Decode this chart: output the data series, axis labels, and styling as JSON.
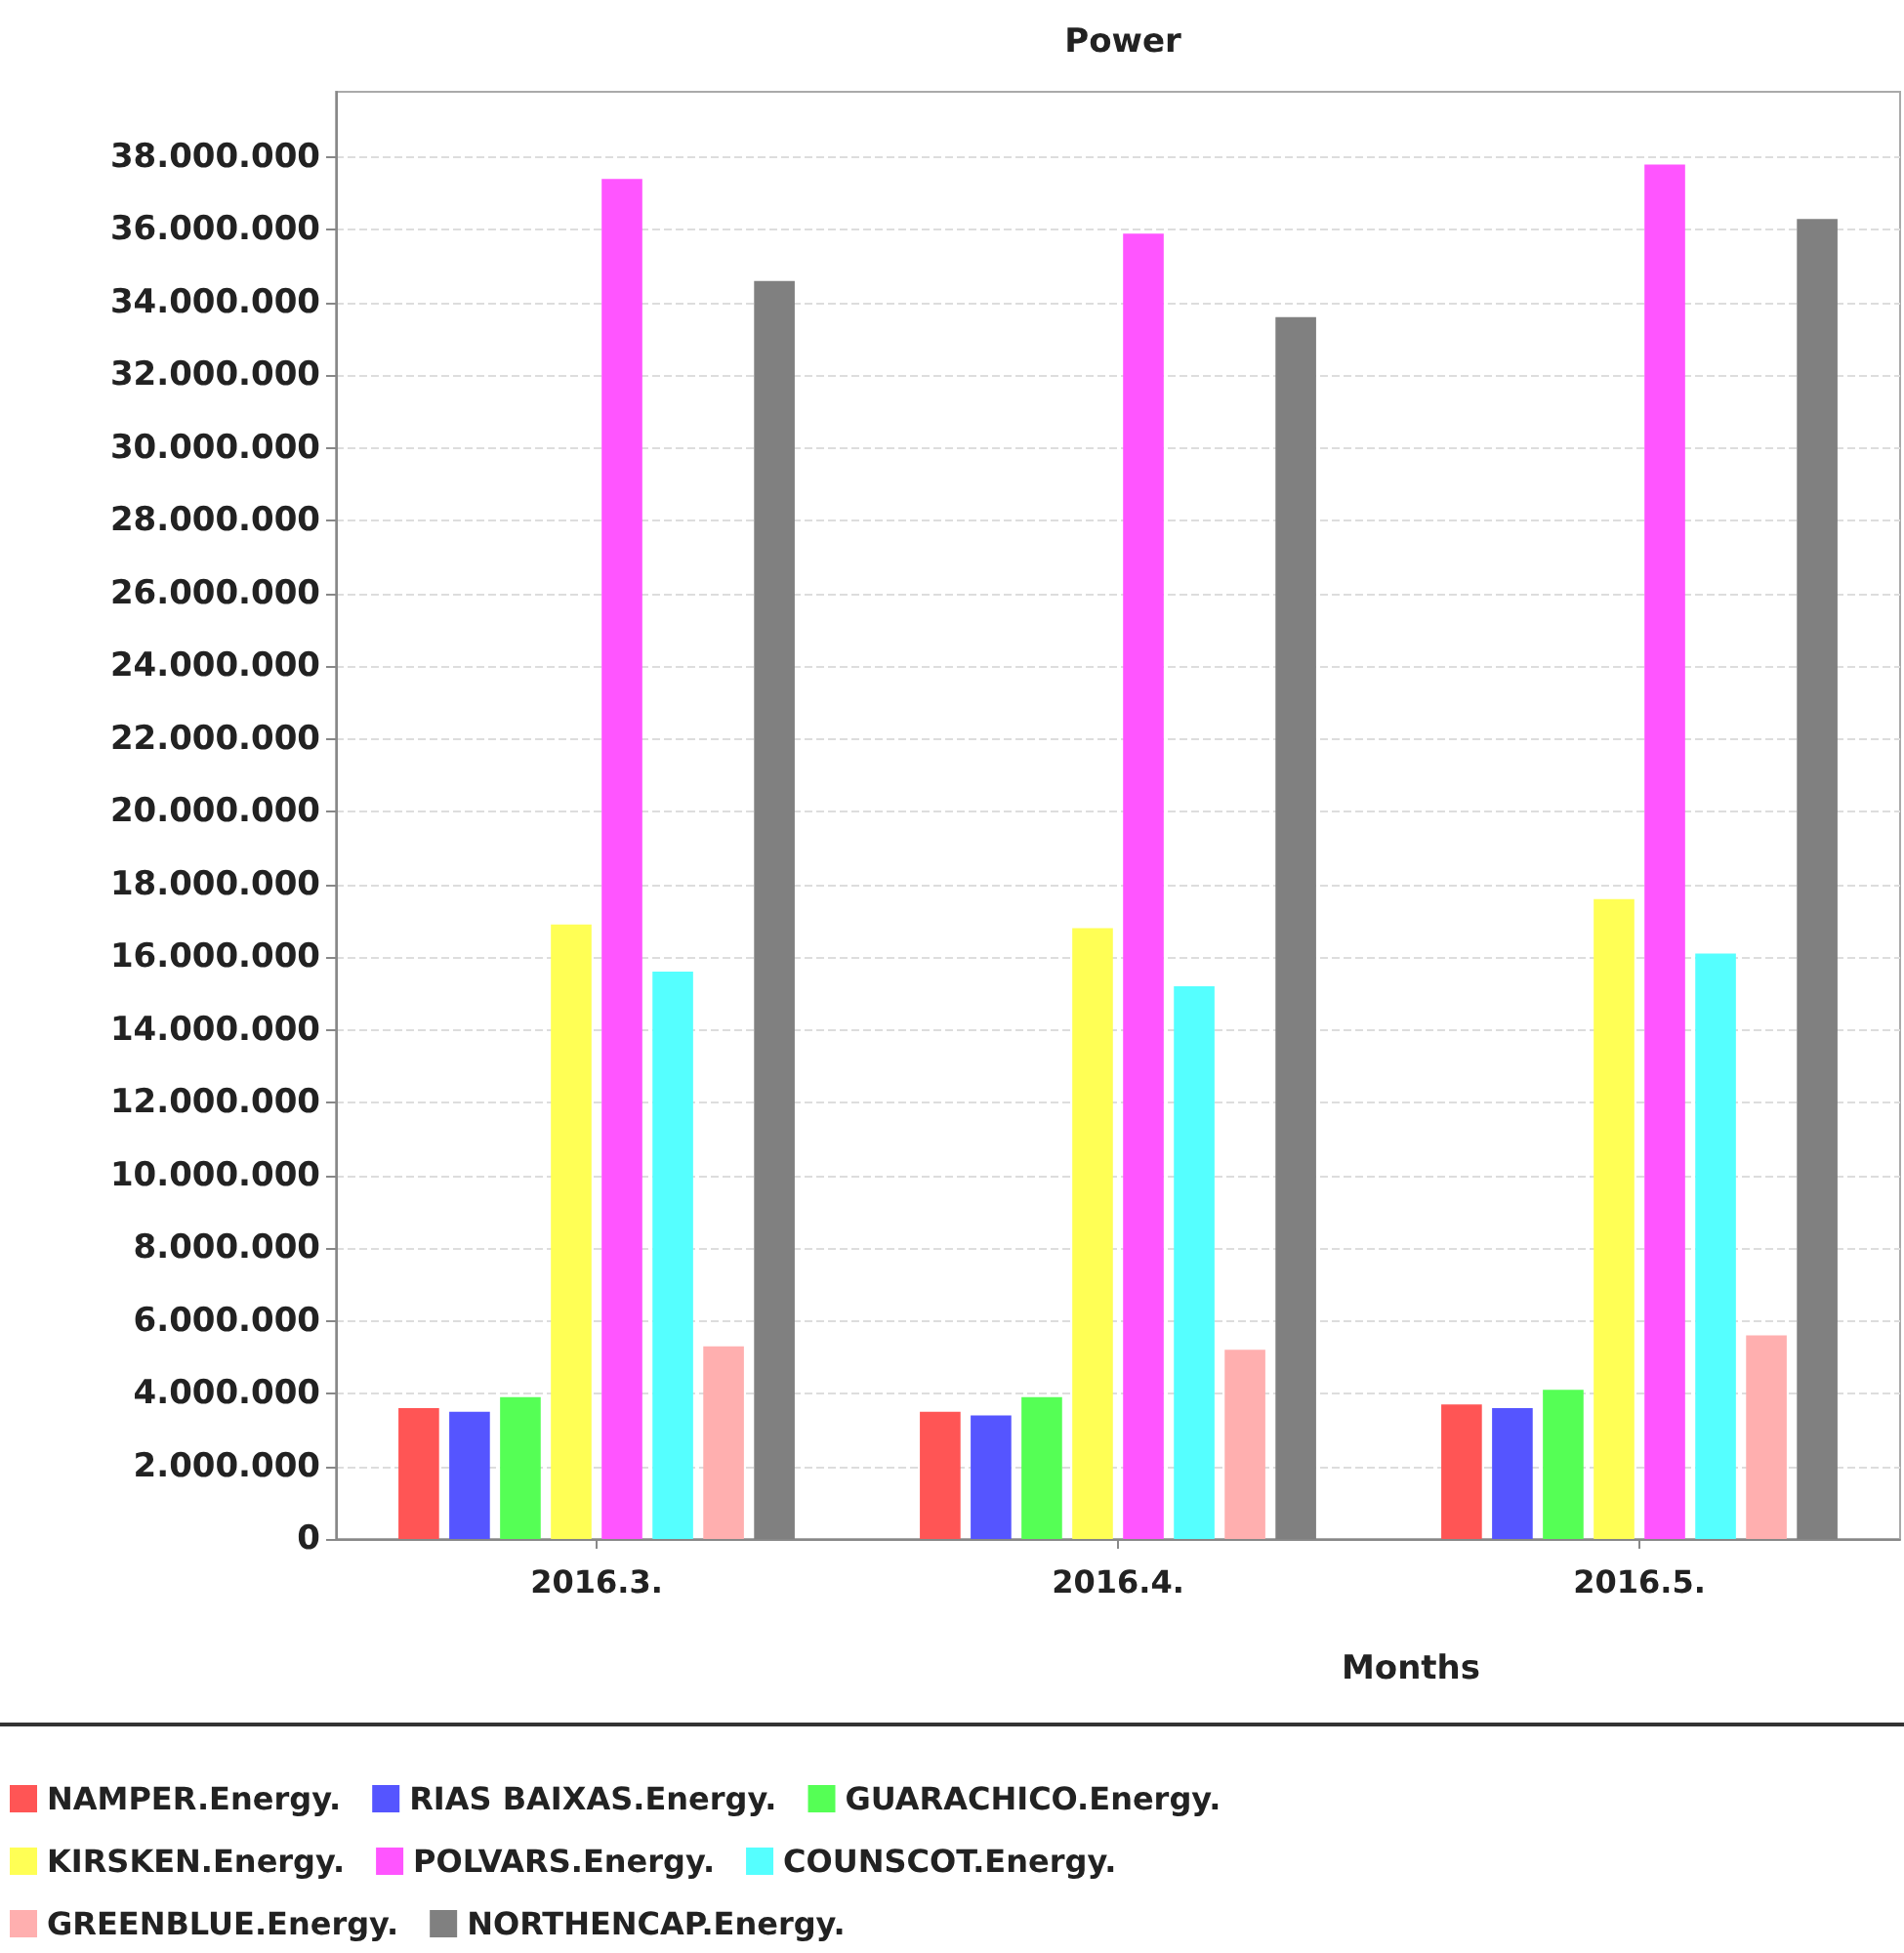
{
  "chart_data": {
    "type": "bar",
    "title": "Power",
    "xlabel": "Months",
    "categories": [
      "2016.3.",
      "2016.4.",
      "2016.5."
    ],
    "series": [
      {
        "name": "NAMPER.Energy.",
        "color": "#ff5555",
        "values": [
          3600000,
          3500000,
          3700000
        ]
      },
      {
        "name": "RIAS BAIXAS.Energy.",
        "color": "#5555ff",
        "values": [
          3500000,
          3400000,
          3600000
        ]
      },
      {
        "name": "GUARACHICO.Energy.",
        "color": "#55ff55",
        "values": [
          3900000,
          3900000,
          4100000
        ]
      },
      {
        "name": "KIRSKEN.Energy.",
        "color": "#ffff55",
        "values": [
          16900000,
          16800000,
          17600000
        ]
      },
      {
        "name": "POLVARS.Energy.",
        "color": "#ff55ff",
        "values": [
          37400000,
          35900000,
          37800000
        ]
      },
      {
        "name": "COUNSCOT.Energy.",
        "color": "#55ffff",
        "values": [
          15600000,
          15200000,
          16100000
        ]
      },
      {
        "name": "GREENBLUE.Energy.",
        "color": "#ffafaf",
        "values": [
          5300000,
          5200000,
          5600000
        ]
      },
      {
        "name": "NORTHENCAP.Energy.",
        "color": "#808080",
        "values": [
          34600000,
          33600000,
          36300000
        ]
      }
    ],
    "ylim": [
      0,
      39800000
    ],
    "yticks": [
      0,
      {
        "value": 2000000,
        "label": "2.000.000"
      },
      {
        "value": 4000000,
        "label": "4.000.000"
      },
      {
        "value": 6000000,
        "label": "6.000.000"
      },
      {
        "value": 8000000,
        "label": "8.000.000"
      },
      {
        "value": 10000000,
        "label": "10.000.000"
      },
      {
        "value": 12000000,
        "label": "12.000.000"
      },
      {
        "value": 14000000,
        "label": "14.000.000"
      },
      {
        "value": 16000000,
        "label": "16.000.000"
      },
      {
        "value": 18000000,
        "label": "18.000.000"
      },
      {
        "value": 20000000,
        "label": "20.000.000"
      },
      {
        "value": 22000000,
        "label": "22.000.000"
      },
      {
        "value": 24000000,
        "label": "24.000.000"
      },
      {
        "value": 26000000,
        "label": "26.000.000"
      },
      {
        "value": 28000000,
        "label": "28.000.000"
      },
      {
        "value": 30000000,
        "label": "30.000.000"
      },
      {
        "value": 32000000,
        "label": "32.000.000"
      },
      {
        "value": 34000000,
        "label": "34.000.000"
      },
      {
        "value": 36000000,
        "label": "36.000.000"
      },
      {
        "value": 38000000,
        "label": "38.000.000"
      }
    ],
    "grid": "y",
    "legend": "bottom"
  }
}
